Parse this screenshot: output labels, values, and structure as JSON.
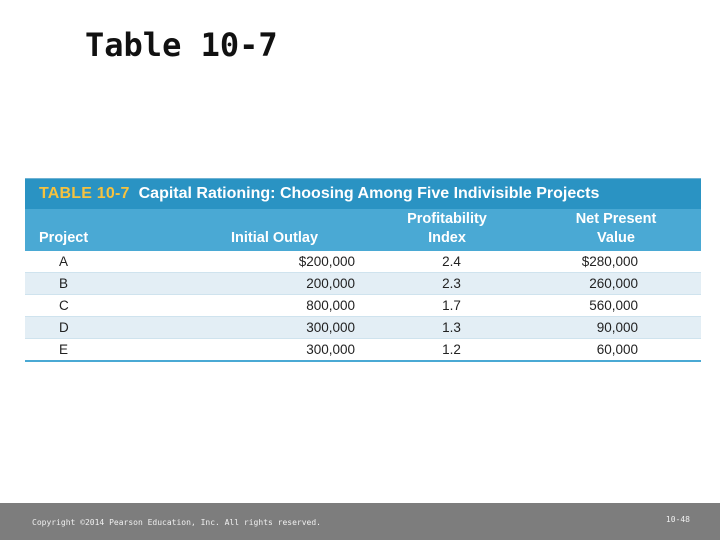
{
  "slide": {
    "title": "Table 10-7"
  },
  "table": {
    "number": "TABLE 10-7",
    "caption": "Capital Rationing: Choosing Among Five Indivisible Projects",
    "headers": {
      "project": "Project",
      "initial_outlay": "Initial Outlay",
      "pi_line1": "Profitability",
      "pi_line2": "Index",
      "npv_line1": "Net Present",
      "npv_line2": "Value"
    },
    "rows": [
      {
        "project": "A",
        "initial_outlay": "$200,000",
        "pi": "2.4",
        "npv": "$280,000"
      },
      {
        "project": "B",
        "initial_outlay": "200,000",
        "pi": "2.3",
        "npv": "260,000"
      },
      {
        "project": "C",
        "initial_outlay": "800,000",
        "pi": "1.7",
        "npv": "560,000"
      },
      {
        "project": "D",
        "initial_outlay": "300,000",
        "pi": "1.3",
        "npv": "90,000"
      },
      {
        "project": "E",
        "initial_outlay": "300,000",
        "pi": "1.2",
        "npv": "60,000"
      }
    ],
    "colors": {
      "title_bar": "#2a93c3",
      "header_bar": "#4aa9d4",
      "number_accent": "#f6c23e",
      "alt_row": "#e3eef5"
    }
  },
  "footer": {
    "copyright": "Copyright ©2014 Pearson Education, Inc. All rights reserved.",
    "page": "10-48"
  }
}
